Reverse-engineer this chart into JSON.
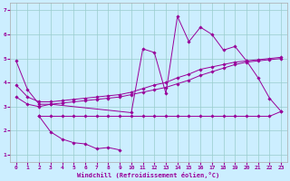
{
  "xlabel": "Windchill (Refroidissement éolien,°C)",
  "ylabel": "",
  "bg_color": "#cceeff",
  "grid_color": "#99cccc",
  "line_color": "#990099",
  "xlim": [
    -0.5,
    23.5
  ],
  "ylim": [
    0.7,
    7.3
  ],
  "xticks": [
    0,
    1,
    2,
    3,
    4,
    5,
    6,
    7,
    8,
    9,
    10,
    11,
    12,
    13,
    14,
    15,
    16,
    17,
    18,
    19,
    20,
    21,
    22,
    23
  ],
  "yticks": [
    1,
    2,
    3,
    4,
    5,
    6,
    7
  ],
  "series": [
    {
      "x": [
        0,
        1,
        2,
        3,
        10,
        11,
        12,
        13,
        14,
        15,
        16,
        17,
        18,
        19,
        20,
        21,
        22,
        23
      ],
      "y": [
        4.9,
        3.7,
        3.1,
        3.1,
        2.75,
        5.4,
        5.25,
        3.55,
        6.75,
        5.7,
        6.3,
        6.0,
        5.35,
        5.5,
        4.9,
        4.2,
        3.35,
        2.8
      ]
    },
    {
      "x": [
        0,
        1,
        2,
        3,
        4,
        5,
        6,
        7,
        8,
        9,
        10,
        11,
        12,
        13,
        14,
        15,
        16,
        17,
        18,
        19,
        20,
        21,
        22,
        23
      ],
      "y": [
        3.4,
        3.1,
        3.0,
        3.1,
        3.15,
        3.2,
        3.25,
        3.3,
        3.35,
        3.4,
        3.5,
        3.6,
        3.7,
        3.8,
        3.95,
        4.1,
        4.3,
        4.45,
        4.6,
        4.75,
        4.85,
        4.9,
        4.95,
        5.0
      ]
    },
    {
      "x": [
        0,
        1,
        2,
        3,
        4,
        5,
        6,
        7,
        8,
        9,
        10,
        11,
        12,
        13,
        14,
        15,
        16,
        17,
        18,
        19,
        20,
        21,
        22,
        23
      ],
      "y": [
        3.9,
        3.4,
        3.2,
        3.2,
        3.25,
        3.3,
        3.35,
        3.4,
        3.45,
        3.5,
        3.6,
        3.75,
        3.9,
        4.0,
        4.2,
        4.35,
        4.55,
        4.65,
        4.75,
        4.85,
        4.9,
        4.95,
        5.0,
        5.05
      ]
    },
    {
      "x": [
        2,
        3,
        4,
        5,
        6,
        7,
        8,
        9,
        10,
        11,
        12,
        13,
        14,
        15,
        16,
        17,
        18,
        19,
        20,
        21,
        22,
        23
      ],
      "y": [
        2.6,
        2.6,
        2.6,
        2.6,
        2.6,
        2.6,
        2.6,
        2.6,
        2.6,
        2.6,
        2.6,
        2.6,
        2.6,
        2.6,
        2.6,
        2.6,
        2.6,
        2.6,
        2.6,
        2.6,
        2.6,
        2.8
      ]
    },
    {
      "x": [
        2,
        3,
        4,
        5,
        6,
        7,
        8,
        9
      ],
      "y": [
        2.6,
        1.95,
        1.65,
        1.5,
        1.45,
        1.25,
        1.3,
        1.2
      ]
    }
  ]
}
